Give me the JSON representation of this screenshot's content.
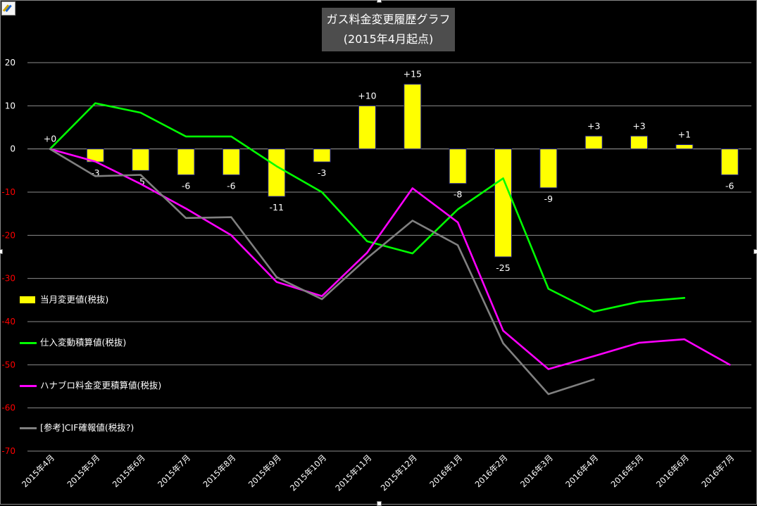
{
  "chart_data": {
    "type": "bar+line",
    "title": [
      "ガス料金変更履歴グラフ",
      "(2015年4月起点)"
    ],
    "categories": [
      "2015年4月",
      "2015年5月",
      "2015年6月",
      "2015年7月",
      "2015年8月",
      "2015年9月",
      "2015年10月",
      "2015年11月",
      "2015年12月",
      "2016年1月",
      "2016年2月",
      "2016年3月",
      "2016年4月",
      "2016年5月",
      "2016年6月",
      "2016年7月"
    ],
    "ylim": [
      -70,
      20
    ],
    "yticks": [
      20,
      10,
      0,
      -10,
      -20,
      -30,
      -40,
      -50,
      -60,
      -70
    ],
    "grid": true,
    "legend_position": "left",
    "bar_series": {
      "name": "当月変更値(税抜)",
      "color": "#ffff00",
      "values": [
        0,
        -3,
        -5,
        -6,
        -6,
        -11,
        -3,
        10,
        15,
        -8,
        -25,
        -9,
        3,
        3,
        1,
        -6
      ],
      "labels": [
        "+0",
        "-3",
        "-5",
        "-6",
        "-6",
        "-11",
        "-3",
        "+10",
        "+15",
        "-8",
        "-25",
        "-9",
        "+3",
        "+3",
        "+1",
        "-6"
      ]
    },
    "series": [
      {
        "name": "仕入変動積算値(税抜)",
        "color": "#00ff00",
        "values": [
          0,
          10.6,
          8.4,
          2.9,
          2.9,
          -4,
          -10,
          -21.4,
          -24.2,
          -14,
          -6.8,
          -32.4,
          -37.7,
          -35.4,
          -34.5,
          null
        ]
      },
      {
        "name": "ハナブロ料金変更積算値(税抜)",
        "color": "#ff00ff",
        "values": [
          0,
          -2.9,
          -8.1,
          -13.8,
          -20,
          -30.8,
          -34.1,
          -24,
          -9.1,
          -17,
          -42.1,
          -51,
          -48,
          -44.9,
          -44.1,
          -50
        ]
      },
      {
        "name": "[参考]CIF確報値(税抜?)",
        "color": "#808080",
        "values": [
          0,
          -6.3,
          -6,
          -16,
          -15.8,
          -29.7,
          -34.8,
          -25.3,
          -16.6,
          -22.3,
          -45,
          -56.8,
          -53.4,
          null,
          null,
          null
        ]
      }
    ]
  },
  "colors": {
    "background": "#000000",
    "grid": "#8c8c8c",
    "negative_ticks": "#ff0000",
    "positive_ticks": "#ffffff"
  }
}
